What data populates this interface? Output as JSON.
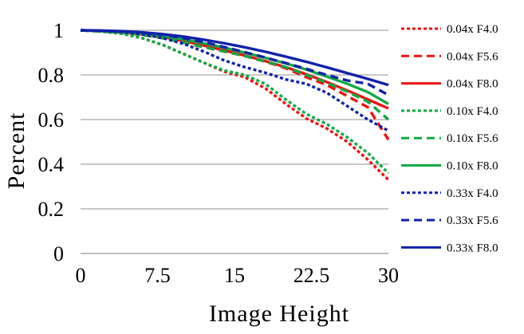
{
  "chart_data": {
    "type": "line",
    "title": "",
    "xlabel": "Image Height",
    "ylabel": "Percent",
    "xlim": [
      0,
      30
    ],
    "ylim": [
      0,
      1
    ],
    "xticks": [
      0,
      7.5,
      15,
      22.5,
      30
    ],
    "xtick_labels": [
      "0",
      "7.5",
      "15",
      "22.5",
      "30"
    ],
    "yticks": [
      0,
      0.2,
      0.4,
      0.6,
      0.8,
      1
    ],
    "ytick_labels": [
      "0",
      "0.2",
      "0.4",
      "0.6",
      "0.8",
      "1"
    ],
    "grid": "horizontal",
    "legend_position": "right",
    "series": [
      {
        "name": "0.04x F4.0",
        "color": "#ee1111",
        "dash": "dotted",
        "points": [
          [
            0,
            1
          ],
          [
            2,
            0.995
          ],
          [
            4,
            0.985
          ],
          [
            6,
            0.965
          ],
          [
            8,
            0.935
          ],
          [
            10,
            0.895
          ],
          [
            12,
            0.855
          ],
          [
            14,
            0.815
          ],
          [
            16,
            0.79
          ],
          [
            18,
            0.74
          ],
          [
            20,
            0.67
          ],
          [
            22,
            0.605
          ],
          [
            24,
            0.56
          ],
          [
            26,
            0.5
          ],
          [
            28,
            0.42
          ],
          [
            30,
            0.33
          ]
        ]
      },
      {
        "name": "0.04x F5.6",
        "color": "#ee1111",
        "dash": "dashed",
        "points": [
          [
            0,
            1
          ],
          [
            2,
            0.995
          ],
          [
            4,
            0.99
          ],
          [
            6,
            0.98
          ],
          [
            8,
            0.965
          ],
          [
            10,
            0.945
          ],
          [
            12,
            0.925
          ],
          [
            14,
            0.905
          ],
          [
            16,
            0.885
          ],
          [
            18,
            0.86
          ],
          [
            20,
            0.83
          ],
          [
            22,
            0.79
          ],
          [
            24,
            0.755
          ],
          [
            26,
            0.705
          ],
          [
            28,
            0.655
          ],
          [
            30,
            0.51
          ]
        ]
      },
      {
        "name": "0.04x F8.0",
        "color": "#ee1111",
        "dash": "solid",
        "points": [
          [
            0,
            1
          ],
          [
            2,
            0.997
          ],
          [
            4,
            0.99
          ],
          [
            6,
            0.982
          ],
          [
            8,
            0.97
          ],
          [
            10,
            0.953
          ],
          [
            12,
            0.932
          ],
          [
            14,
            0.91
          ],
          [
            16,
            0.887
          ],
          [
            18,
            0.862
          ],
          [
            20,
            0.835
          ],
          [
            22,
            0.803
          ],
          [
            24,
            0.768
          ],
          [
            26,
            0.73
          ],
          [
            28,
            0.69
          ],
          [
            30,
            0.65
          ]
        ]
      },
      {
        "name": "0.10x F4.0",
        "color": "#11aa44",
        "dash": "dotted",
        "points": [
          [
            0,
            1
          ],
          [
            2,
            0.995
          ],
          [
            4,
            0.985
          ],
          [
            6,
            0.965
          ],
          [
            8,
            0.935
          ],
          [
            10,
            0.895
          ],
          [
            12,
            0.855
          ],
          [
            14,
            0.82
          ],
          [
            16,
            0.8
          ],
          [
            18,
            0.76
          ],
          [
            20,
            0.69
          ],
          [
            22,
            0.625
          ],
          [
            24,
            0.58
          ],
          [
            26,
            0.52
          ],
          [
            28,
            0.45
          ],
          [
            30,
            0.36
          ]
        ]
      },
      {
        "name": "0.10x F5.6",
        "color": "#11aa44",
        "dash": "dashed",
        "points": [
          [
            0,
            1
          ],
          [
            2,
            0.995
          ],
          [
            4,
            0.99
          ],
          [
            6,
            0.98
          ],
          [
            8,
            0.965
          ],
          [
            10,
            0.945
          ],
          [
            12,
            0.925
          ],
          [
            14,
            0.905
          ],
          [
            16,
            0.885
          ],
          [
            18,
            0.86
          ],
          [
            20,
            0.835
          ],
          [
            22,
            0.8
          ],
          [
            24,
            0.765
          ],
          [
            26,
            0.725
          ],
          [
            28,
            0.68
          ],
          [
            30,
            0.6
          ]
        ]
      },
      {
        "name": "0.10x F8.0",
        "color": "#11aa44",
        "dash": "solid",
        "points": [
          [
            0,
            1
          ],
          [
            2,
            0.997
          ],
          [
            4,
            0.992
          ],
          [
            6,
            0.985
          ],
          [
            8,
            0.974
          ],
          [
            10,
            0.96
          ],
          [
            12,
            0.942
          ],
          [
            14,
            0.922
          ],
          [
            16,
            0.9
          ],
          [
            18,
            0.877
          ],
          [
            20,
            0.852
          ],
          [
            22,
            0.824
          ],
          [
            24,
            0.793
          ],
          [
            26,
            0.76
          ],
          [
            28,
            0.723
          ],
          [
            30,
            0.67
          ]
        ]
      },
      {
        "name": "0.33x F4.0",
        "color": "#1122aa",
        "dash": "dotted",
        "points": [
          [
            0,
            1
          ],
          [
            2,
            0.998
          ],
          [
            4,
            0.993
          ],
          [
            6,
            0.982
          ],
          [
            8,
            0.965
          ],
          [
            10,
            0.94
          ],
          [
            12,
            0.905
          ],
          [
            14,
            0.865
          ],
          [
            16,
            0.835
          ],
          [
            18,
            0.81
          ],
          [
            20,
            0.78
          ],
          [
            22,
            0.76
          ],
          [
            24,
            0.72
          ],
          [
            26,
            0.66
          ],
          [
            28,
            0.6
          ],
          [
            30,
            0.55
          ]
        ]
      },
      {
        "name": "0.33x F5.6",
        "color": "#1122aa",
        "dash": "dashed",
        "points": [
          [
            0,
            1
          ],
          [
            2,
            0.998
          ],
          [
            4,
            0.995
          ],
          [
            6,
            0.99
          ],
          [
            8,
            0.98
          ],
          [
            10,
            0.965
          ],
          [
            12,
            0.947
          ],
          [
            14,
            0.925
          ],
          [
            16,
            0.902
          ],
          [
            18,
            0.878
          ],
          [
            20,
            0.853
          ],
          [
            22,
            0.827
          ],
          [
            24,
            0.8
          ],
          [
            26,
            0.775
          ],
          [
            28,
            0.76
          ],
          [
            30,
            0.71
          ]
        ]
      },
      {
        "name": "0.33x F8.0",
        "color": "#1122aa",
        "dash": "solid",
        "points": [
          [
            0,
            1
          ],
          [
            2,
            0.999
          ],
          [
            4,
            0.996
          ],
          [
            6,
            0.991
          ],
          [
            8,
            0.983
          ],
          [
            10,
            0.972
          ],
          [
            12,
            0.958
          ],
          [
            14,
            0.942
          ],
          [
            16,
            0.924
          ],
          [
            18,
            0.904
          ],
          [
            20,
            0.882
          ],
          [
            22,
            0.859
          ],
          [
            24,
            0.834
          ],
          [
            26,
            0.808
          ],
          [
            28,
            0.782
          ],
          [
            30,
            0.755
          ]
        ]
      }
    ]
  }
}
